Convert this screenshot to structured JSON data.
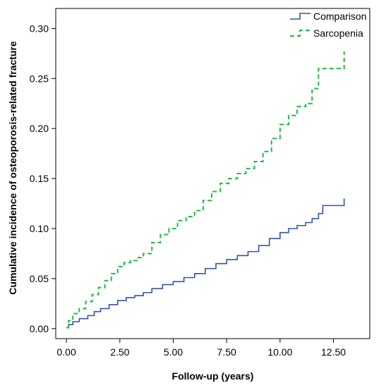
{
  "chart_data": {
    "type": "line",
    "title": "",
    "xlabel": "Follow-up (years)",
    "ylabel": "Cumulative incidence of osteoporosis-related fracture",
    "xlim": [
      -0.5,
      14.2
    ],
    "ylim": [
      -0.01,
      0.32
    ],
    "x_ticks": [
      0,
      2.5,
      5,
      7.5,
      10,
      12.5
    ],
    "x_tick_labels": [
      "0.00",
      "2.50",
      "5.00",
      "7.50",
      "10.00",
      "12.50"
    ],
    "y_ticks": [
      0,
      0.05,
      0.1,
      0.15,
      0.2,
      0.25,
      0.3
    ],
    "y_tick_labels": [
      "0.00",
      "0.05",
      "0.10",
      "0.15",
      "0.20",
      "0.25",
      "0.30"
    ],
    "grid": false,
    "legend_position": "top-right",
    "series": [
      {
        "name": "Comparison",
        "color": "#3355a6",
        "dash": "solid",
        "x": [
          0,
          0.1,
          0.3,
          0.6,
          1.0,
          1.3,
          1.6,
          2.0,
          2.4,
          2.8,
          3.2,
          3.6,
          4.0,
          4.5,
          5.0,
          5.5,
          6.0,
          6.5,
          7.0,
          7.5,
          8.0,
          8.5,
          9.0,
          9.5,
          10.0,
          10.4,
          10.8,
          11.2,
          11.5,
          11.8,
          12.0,
          12.5,
          12.9,
          13.0
        ],
        "y": [
          0.001,
          0.004,
          0.007,
          0.01,
          0.013,
          0.017,
          0.02,
          0.024,
          0.028,
          0.031,
          0.033,
          0.036,
          0.04,
          0.044,
          0.047,
          0.051,
          0.055,
          0.06,
          0.065,
          0.069,
          0.073,
          0.077,
          0.083,
          0.09,
          0.096,
          0.1,
          0.103,
          0.106,
          0.11,
          0.115,
          0.123,
          0.123,
          0.123,
          0.13
        ]
      },
      {
        "name": "Sarcopenia",
        "color": "#22bb44",
        "dash": "dashed",
        "x": [
          0,
          0.1,
          0.3,
          0.6,
          0.9,
          1.2,
          1.5,
          1.8,
          2.1,
          2.4,
          2.7,
          3.0,
          3.3,
          3.6,
          4.0,
          4.4,
          4.8,
          5.2,
          5.6,
          6.0,
          6.4,
          6.8,
          7.2,
          7.6,
          8.0,
          8.4,
          8.8,
          9.2,
          9.6,
          10.0,
          10.4,
          10.8,
          11.2,
          11.5,
          11.8,
          12.2,
          12.5,
          12.9,
          13.0
        ],
        "y": [
          0.001,
          0.008,
          0.015,
          0.02,
          0.027,
          0.034,
          0.041,
          0.048,
          0.055,
          0.062,
          0.066,
          0.068,
          0.071,
          0.075,
          0.086,
          0.094,
          0.1,
          0.108,
          0.112,
          0.118,
          0.128,
          0.137,
          0.145,
          0.15,
          0.155,
          0.16,
          0.167,
          0.177,
          0.19,
          0.204,
          0.213,
          0.222,
          0.225,
          0.24,
          0.26,
          0.26,
          0.26,
          0.26,
          0.277
        ]
      }
    ]
  }
}
